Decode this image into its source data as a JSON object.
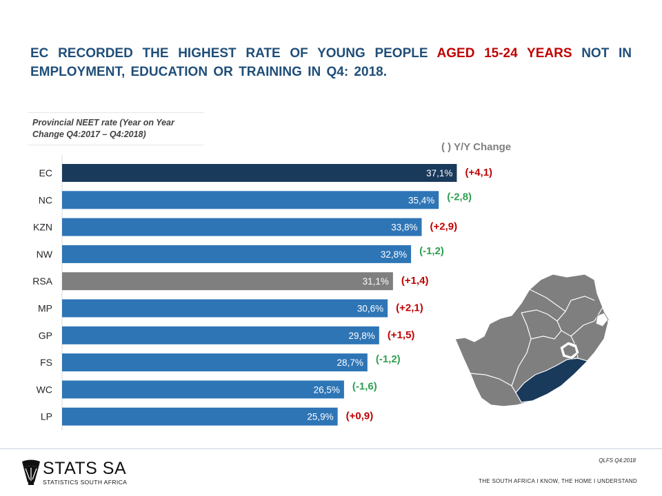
{
  "title": {
    "part1": "EC RECORDED THE HIGHEST RATE OF YOUNG PEOPLE ",
    "highlight": "AGED 15-24 YEARS",
    "part2": " NOT IN EMPLOYMENT, EDUCATION OR TRAINING IN Q4: 2018."
  },
  "subtitle": "Provincial NEET rate (Year on Year Change Q4:2017 – Q4:2018)",
  "legend": "( )  Y/Y Change",
  "colors": {
    "highlight_bar": "#1a3a5c",
    "bar": "#2e75b6",
    "national_bar": "#7f7f7f",
    "positive_change": "#c00000",
    "negative_change": "#2e9e4f"
  },
  "chart_data": {
    "type": "bar",
    "orientation": "horizontal",
    "title": "Provincial NEET rate (Year on Year Change Q4:2017 – Q4:2018)",
    "categories": [
      "EC",
      "NC",
      "KZN",
      "NW",
      "RSA",
      "MP",
      "GP",
      "FS",
      "WC",
      "LP"
    ],
    "values": [
      37.1,
      35.4,
      33.8,
      32.8,
      31.1,
      30.6,
      29.8,
      28.7,
      26.5,
      25.9
    ],
    "value_labels": [
      "37,1%",
      "35,4%",
      "33,8%",
      "32,8%",
      "31,1%",
      "30,6%",
      "29,8%",
      "28,7%",
      "26,5%",
      "25,9%"
    ],
    "yoy_change": [
      4.1,
      -2.8,
      2.9,
      -1.2,
      1.4,
      2.1,
      1.5,
      -1.2,
      -1.6,
      0.9
    ],
    "yoy_labels": [
      "(+4,1)",
      "(-2,8)",
      "(+2,9)",
      "(-1,2)",
      "(+1,4)",
      "(+2,1)",
      "(+1,5)",
      "(-1,2)",
      "(-1,6)",
      "(+0,9)"
    ],
    "highlight": "EC",
    "national": "RSA",
    "xlim": [
      0,
      40
    ],
    "grid": false,
    "legend": "( )  Y/Y Change"
  },
  "footer": {
    "logo_text": "STATS SA",
    "logo_sub": "STATISTICS SOUTH AFRICA",
    "source": "QLFS  Q4:2018",
    "tagline": "THE SOUTH AFRICA I KNOW, THE HOME I UNDERSTAND"
  }
}
